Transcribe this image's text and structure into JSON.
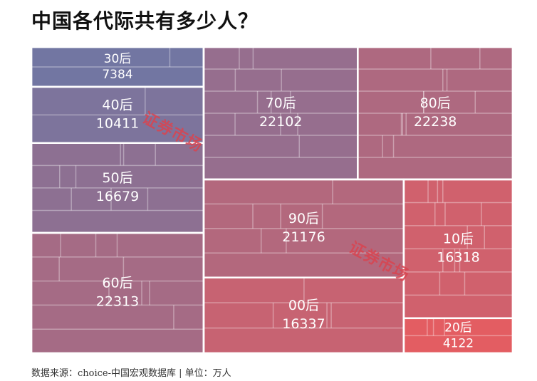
{
  "title": "中国各代际共有多少人？",
  "source": "数据来源：choice-中国宏观数据库 | 单位：万人",
  "watermark": "证券市场",
  "colors": {
    "cool": "#6a78a6",
    "warm": "#e75c60",
    "grid": "#ffffff"
  },
  "chart_data": {
    "type": "treemap",
    "unit": "万人",
    "categories": [
      "30后",
      "40后",
      "50后",
      "60后",
      "70后",
      "80后",
      "90后",
      "00后",
      "10后",
      "20后"
    ],
    "values": [
      7384,
      10411,
      16679,
      22313,
      22102,
      22238,
      21176,
      16337,
      16318,
      4122
    ]
  }
}
